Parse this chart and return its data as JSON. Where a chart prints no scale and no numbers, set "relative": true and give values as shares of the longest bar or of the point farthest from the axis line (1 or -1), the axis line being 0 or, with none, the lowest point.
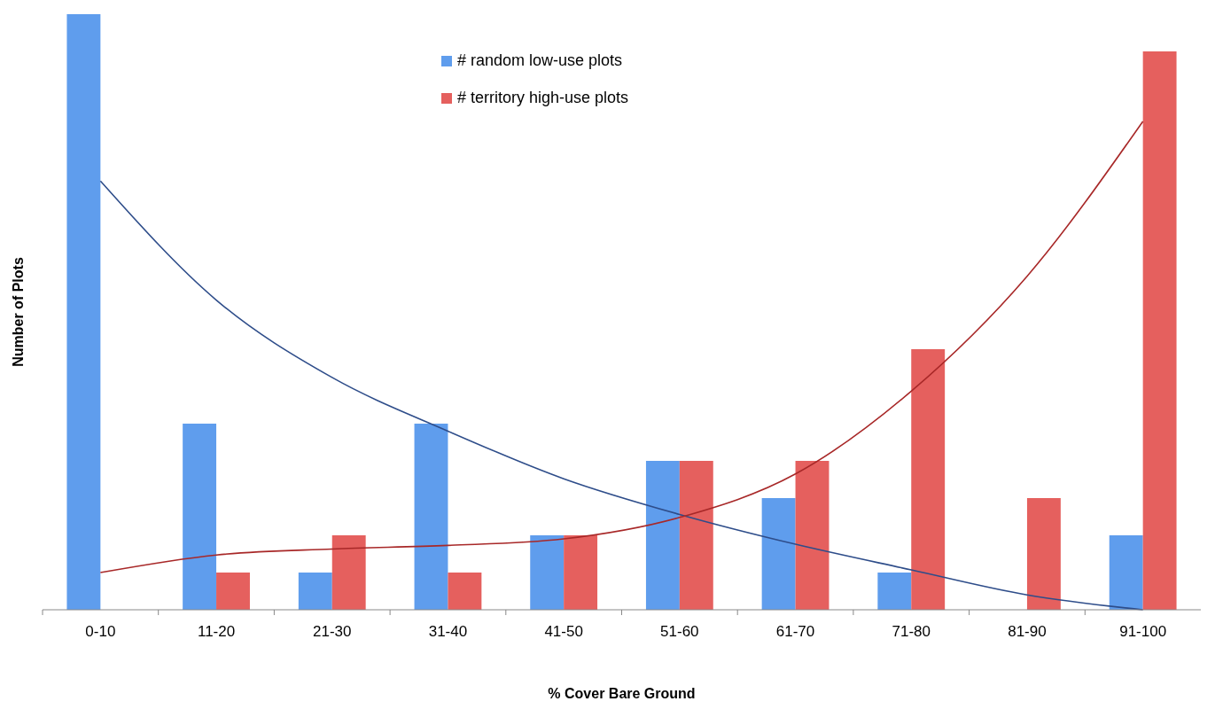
{
  "chart_data": {
    "type": "bar",
    "relative": true,
    "xlabel": "% Cover Bare Ground",
    "ylabel": "Number of Plots",
    "legend": "top",
    "categories": [
      "0-10",
      "11-20",
      "21-30",
      "31-40",
      "41-50",
      "51-60",
      "61-70",
      "71-80",
      "81-90",
      "91-100"
    ],
    "series": [
      {
        "name": "# random low-use plots",
        "color": "#5f9ded",
        "values": [
          1,
          0.3125,
          0.0625,
          0.3125,
          0.125,
          0.25,
          0.1875,
          0.0625,
          0,
          0.125
        ]
      },
      {
        "name": "# territory high-use plots",
        "color": "#e5605e",
        "values": [
          0,
          0.0625,
          0.125,
          0.0625,
          0.125,
          0.25,
          0.25,
          0.4375,
          0.1875,
          0.9375
        ]
      },
      {
        "type": "line",
        "color": "#2e4d8a",
        "values": [
          0.72,
          0.52,
          0.39,
          0.3,
          0.22,
          0.16,
          0.11,
          0.067,
          0.025,
          0
        ]
      },
      {
        "type": "line",
        "color": "#a82828",
        "values": [
          0.0625,
          0.092,
          0.102,
          0.108,
          0.119,
          0.155,
          0.228,
          0.367,
          0.56,
          0.82
        ]
      }
    ]
  }
}
